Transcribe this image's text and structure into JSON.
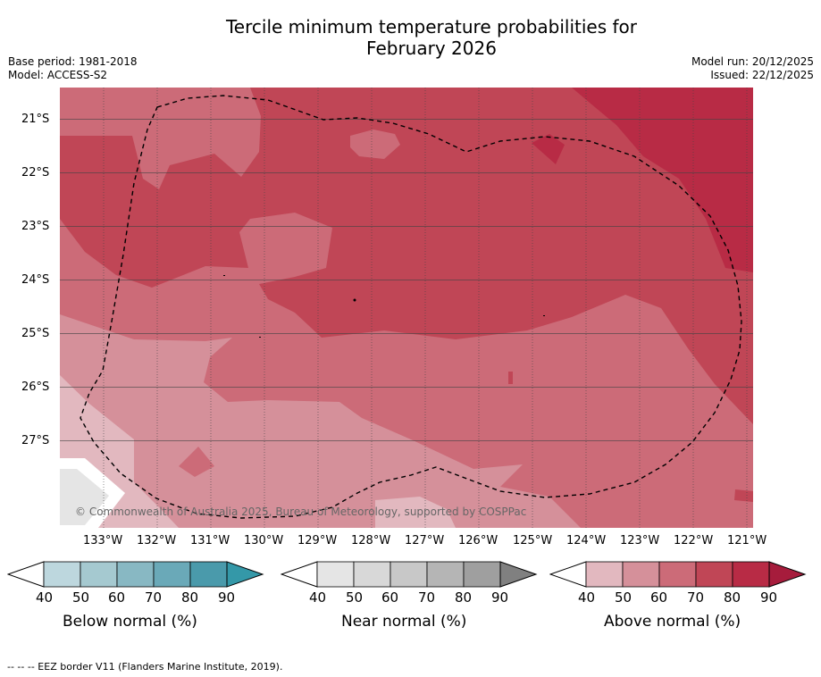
{
  "title_line1": "Tercile minimum temperature probabilities for",
  "title_line2": "February 2026",
  "meta_left": {
    "base_period": "Base period: 1981-2018",
    "model": "Model: ACCESS-S2"
  },
  "meta_right": {
    "model_run": "Model run: 20/12/2025",
    "issued": "Issued: 22/12/2025"
  },
  "latitude_labels": [
    "21°S",
    "22°S",
    "23°S",
    "24°S",
    "25°S",
    "26°S",
    "27°S"
  ],
  "longitude_labels": [
    "133°W",
    "132°W",
    "131°W",
    "130°W",
    "129°W",
    "128°W",
    "127°W",
    "126°W",
    "125°W",
    "124°W",
    "123°W",
    "122°W",
    "121°W"
  ],
  "watermark": "© Commonwealth of Australia 2025, Bureau of Meteorology, supported by COSPPac",
  "colorbars": [
    {
      "title": "Below normal (%)",
      "ticks": [
        "40",
        "50",
        "60",
        "70",
        "80",
        "90"
      ],
      "colors": [
        "#bdd7de",
        "#a5c9d0",
        "#88b8c3",
        "#6aa9b8",
        "#4a9aab",
        "#3498a8"
      ]
    },
    {
      "title": "Near normal (%)",
      "ticks": [
        "40",
        "50",
        "60",
        "70",
        "80",
        "90"
      ],
      "colors": [
        "#e5e5e5",
        "#d8d8d8",
        "#c8c8c8",
        "#b5b5b5",
        "#9f9f9f",
        "#808080"
      ]
    },
    {
      "title": "Above normal (%)",
      "ticks": [
        "40",
        "50",
        "60",
        "70",
        "80",
        "90"
      ],
      "colors": [
        "#e2b8bf",
        "#d5909a",
        "#cc6b78",
        "#c04656",
        "#b82b45",
        "#a61c3c"
      ]
    }
  ],
  "map_colors": {
    "white": "#ffffff",
    "grey": "#e5e5e5",
    "a40": "#e2b8bf",
    "a50": "#d5909a",
    "a60": "#cc6b78",
    "a70": "#c04656",
    "a80": "#b82b45"
  },
  "footnote": "-- -- -- EEZ border V11 (Flanders Marine Institute, 2019)."
}
